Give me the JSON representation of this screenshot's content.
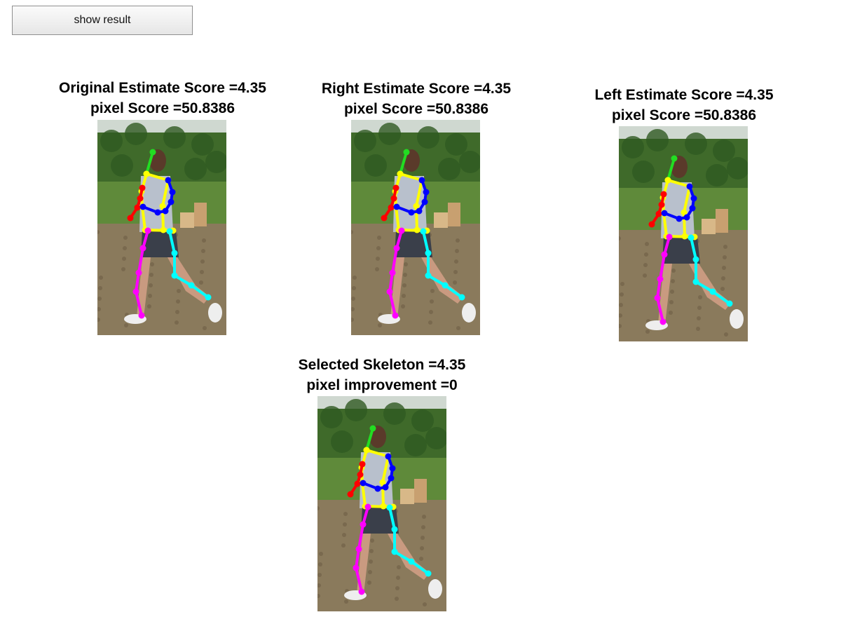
{
  "toolbar": {
    "show_result_label": "show result"
  },
  "panels": [
    {
      "id": "original",
      "line1": "Original Estimate Score =4.35",
      "line2": "pixel Score =50.8386"
    },
    {
      "id": "right",
      "line1": "Right Estimate Score =4.35",
      "line2": "pixel Score =50.8386"
    },
    {
      "id": "left",
      "line1": "Left Estimate Score =4.35",
      "line2": "pixel Score =50.8386"
    },
    {
      "id": "selected",
      "line1": "Selected Skeleton =4.35",
      "line2": "pixel improvement =0"
    }
  ],
  "skeleton_colors": {
    "head": "#22dd22",
    "torso": "#ffff00",
    "right_arm": "#ff0000",
    "left_arm": "#0000ff",
    "right_leg": "#ff00ff",
    "left_leg": "#00ffff"
  },
  "photo_colors": {
    "foliage": "#3f6a2a",
    "sky": "#cfd8d0",
    "grass": "#5f8a3a",
    "ground": "#8a7a5c"
  }
}
